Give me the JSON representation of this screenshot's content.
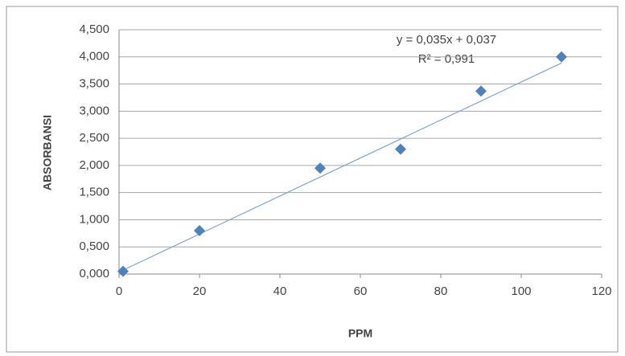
{
  "chart_data": {
    "type": "scatter",
    "x_label": "PPM",
    "y_label": "ABSORBANSI",
    "series": [
      {
        "name": "ABSORBANSI",
        "color": "#4f81bd",
        "x": [
          1,
          20,
          50,
          70,
          90,
          110
        ],
        "values": [
          0.05,
          0.8,
          1.95,
          2.3,
          3.37,
          4.0
        ]
      }
    ],
    "xlim": [
      0,
      120
    ],
    "xticks": [
      0,
      20,
      40,
      60,
      80,
      100,
      120
    ],
    "ylim": [
      0,
      4.5
    ],
    "yticks": [
      {
        "value": 0,
        "label": "0,000"
      },
      {
        "value": 0.5,
        "label": "0,500"
      },
      {
        "value": 1,
        "label": "1,000"
      },
      {
        "value": 1.5,
        "label": "1,500"
      },
      {
        "value": 2,
        "label": "2,000"
      },
      {
        "value": 2.5,
        "label": "2,500"
      },
      {
        "value": 3,
        "label": "3,000"
      },
      {
        "value": 3.5,
        "label": "3,500"
      },
      {
        "value": 4,
        "label": "4,000"
      },
      {
        "value": 4.5,
        "label": "4,500"
      }
    ],
    "grid": true,
    "trendline": {
      "equation": "y = 0,035x + 0,037",
      "r2": "R² = 0,991",
      "slope": 0.035,
      "intercept": 0.037,
      "color": "#7ea6d0"
    }
  }
}
